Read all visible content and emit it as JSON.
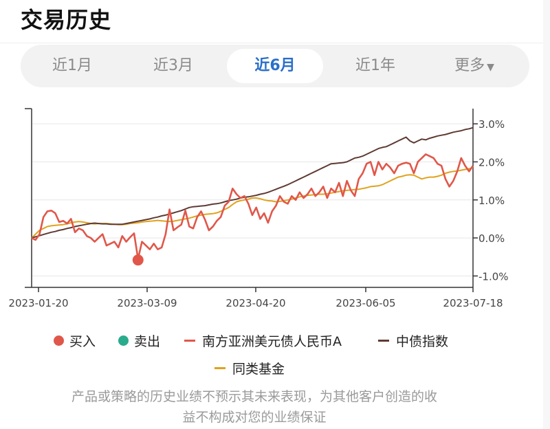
{
  "header": {
    "title": "交易历史"
  },
  "tabs": [
    {
      "label": "近1月",
      "active": false
    },
    {
      "label": "近3月",
      "active": false
    },
    {
      "label": "近6月",
      "active": true
    },
    {
      "label": "近1年",
      "active": false
    },
    {
      "label": "更多",
      "active": false,
      "icon": "caret-down-icon"
    }
  ],
  "chart_data": {
    "type": "line",
    "x_ticks": [
      "2023-01-20",
      "2023-03-09",
      "2023-04-20",
      "2023-06-05",
      "2023-07-18"
    ],
    "y_ticks": [
      "3.0%",
      "2.0%",
      "1.0%",
      "0.0%",
      "-1.0%"
    ],
    "ylim": [
      -1.3,
      3.4
    ],
    "y_unit": "%",
    "grid": true,
    "legend_position": "bottom",
    "series": [
      {
        "name": "南方亚洲美元债人民币A",
        "color": "#e0574a",
        "values": [
          0.0,
          -0.05,
          0.1,
          0.55,
          0.7,
          0.72,
          0.65,
          0.42,
          0.45,
          0.38,
          0.5,
          0.15,
          0.25,
          0.2,
          0.05,
          0.0,
          -0.1,
          0.0,
          0.1,
          -0.2,
          -0.15,
          -0.1,
          -0.25,
          0.05,
          -0.1,
          0.02,
          0.12,
          -0.55,
          -0.1,
          -0.2,
          -0.3,
          -0.15,
          -0.3,
          -0.25,
          0.1,
          0.75,
          0.2,
          0.28,
          0.35,
          0.72,
          0.3,
          0.25,
          0.55,
          0.7,
          0.48,
          0.2,
          0.3,
          0.45,
          0.55,
          0.85,
          0.95,
          1.3,
          1.15,
          1.05,
          1.1,
          0.9,
          0.6,
          0.8,
          0.5,
          0.65,
          0.4,
          0.7,
          0.85,
          1.1,
          0.95,
          0.9,
          1.1,
          1.0,
          1.2,
          1.05,
          1.15,
          1.3,
          1.1,
          1.2,
          1.35,
          1.05,
          1.3,
          1.2,
          1.45,
          1.1,
          1.5,
          1.25,
          1.1,
          1.55,
          1.7,
          1.95,
          2.0,
          1.65,
          2.0,
          1.8,
          1.95,
          1.85,
          1.7,
          1.9,
          1.95,
          1.98,
          1.95,
          1.7,
          2.0,
          2.1,
          2.2,
          2.15,
          2.1,
          1.95,
          1.9,
          1.55,
          1.35,
          1.5,
          1.75,
          2.1,
          1.9,
          1.75,
          1.9
        ]
      },
      {
        "name": "中债指数",
        "color": "#5e3a33",
        "values": [
          0.0,
          0.03,
          0.06,
          0.09,
          0.12,
          0.15,
          0.17,
          0.2,
          0.22,
          0.25,
          0.27,
          0.3,
          0.32,
          0.34,
          0.36,
          0.38,
          0.39,
          0.38,
          0.37,
          0.37,
          0.36,
          0.36,
          0.36,
          0.36,
          0.38,
          0.4,
          0.42,
          0.44,
          0.46,
          0.48,
          0.5,
          0.53,
          0.55,
          0.58,
          0.6,
          0.63,
          0.66,
          0.69,
          0.72,
          0.76,
          0.8,
          0.82,
          0.83,
          0.84,
          0.85,
          0.87,
          0.89,
          0.9,
          0.92,
          0.95,
          0.98,
          1.0,
          1.02,
          1.05,
          1.07,
          1.08,
          1.1,
          1.12,
          1.15,
          1.17,
          1.2,
          1.24,
          1.28,
          1.32,
          1.36,
          1.4,
          1.45,
          1.5,
          1.55,
          1.6,
          1.65,
          1.7,
          1.75,
          1.8,
          1.85,
          1.9,
          1.95,
          1.96,
          1.97,
          1.98,
          2.0,
          2.05,
          2.1,
          2.12,
          2.15,
          2.2,
          2.25,
          2.3,
          2.35,
          2.38,
          2.4,
          2.45,
          2.5,
          2.55,
          2.6,
          2.65,
          2.55,
          2.5,
          2.55,
          2.6,
          2.58,
          2.62,
          2.65,
          2.68,
          2.7,
          2.72,
          2.75,
          2.78,
          2.8,
          2.82,
          2.85,
          2.87,
          2.9
        ]
      },
      {
        "name": "同类基金",
        "color": "#e0a21c",
        "values": [
          0.0,
          0.1,
          0.2,
          0.25,
          0.3,
          0.32,
          0.33,
          0.34,
          0.35,
          0.37,
          0.4,
          0.42,
          0.43,
          0.42,
          0.4,
          0.38,
          0.37,
          0.38,
          0.38,
          0.38,
          0.37,
          0.36,
          0.35,
          0.35,
          0.36,
          0.38,
          0.39,
          0.4,
          0.42,
          0.43,
          0.44,
          0.45,
          0.46,
          0.45,
          0.44,
          0.43,
          0.44,
          0.46,
          0.48,
          0.5,
          0.52,
          0.55,
          0.58,
          0.6,
          0.62,
          0.63,
          0.64,
          0.66,
          0.7,
          0.75,
          0.8,
          0.88,
          0.95,
          0.98,
          1.0,
          1.02,
          1.05,
          1.05,
          1.03,
          1.0,
          0.98,
          0.97,
          0.95,
          0.96,
          0.98,
          1.0,
          1.02,
          1.05,
          1.08,
          1.1,
          1.12,
          1.13,
          1.14,
          1.15,
          1.15,
          1.16,
          1.18,
          1.2,
          1.22,
          1.24,
          1.25,
          1.26,
          1.27,
          1.28,
          1.3,
          1.32,
          1.35,
          1.36,
          1.37,
          1.4,
          1.45,
          1.5,
          1.55,
          1.6,
          1.62,
          1.65,
          1.66,
          1.65,
          1.6,
          1.55,
          1.58,
          1.6,
          1.6,
          1.62,
          1.65,
          1.7,
          1.73,
          1.75,
          1.76,
          1.78,
          1.8,
          1.82,
          1.85
        ]
      }
    ],
    "markers": [
      {
        "type": "buy",
        "x_index": 27,
        "value": -0.58
      }
    ]
  },
  "legend": {
    "buy": {
      "label": "买入",
      "color": "#e0574a"
    },
    "sell": {
      "label": "卖出",
      "color": "#2aab8c"
    },
    "fund": {
      "label": "南方亚洲美元债人民币A",
      "color": "#e0574a"
    },
    "index": {
      "label": "中债指数",
      "color": "#5e3a33"
    },
    "peer": {
      "label": "同类基金",
      "color": "#e0a21c"
    }
  },
  "disclaimer": {
    "line1": "产品或策略的历史业绩不预示其未来表现，为其他客户创造的收",
    "line2": "益不构成对您的业绩保证"
  }
}
